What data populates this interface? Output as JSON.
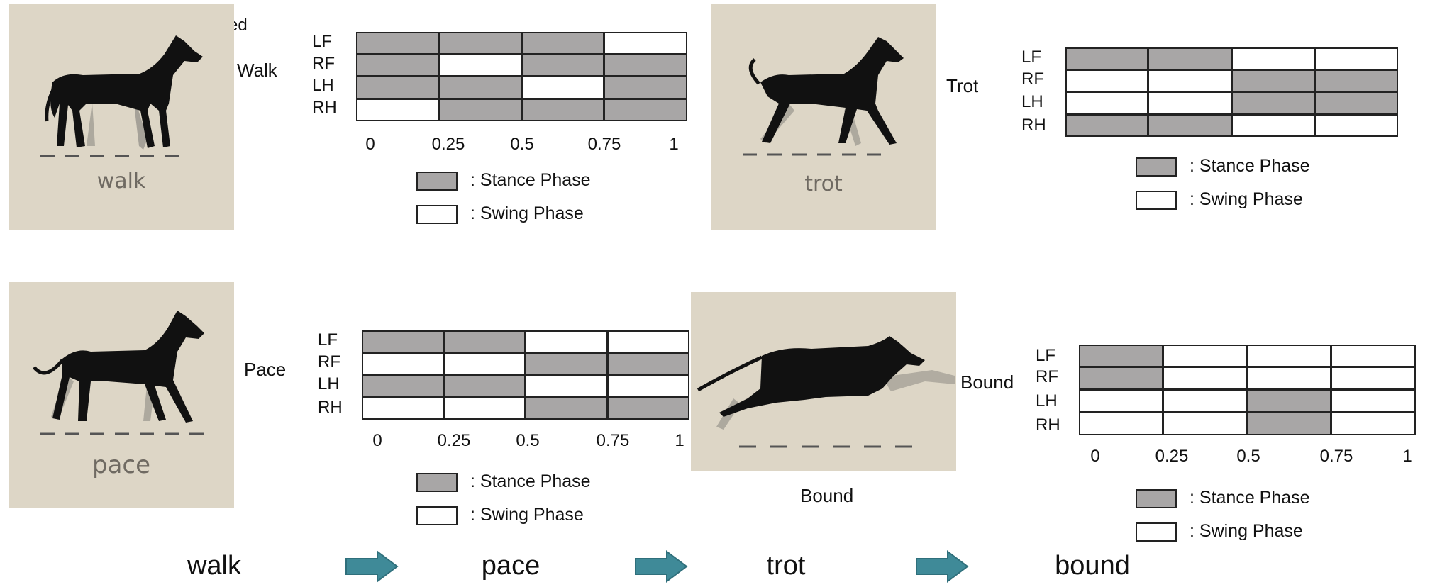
{
  "fragment_text": "ed",
  "panels": [
    {
      "id": "walk",
      "photo_caption": "walk",
      "gait_label": "Walk",
      "rows": [
        "LF",
        "RF",
        "LH",
        "RH"
      ],
      "ticks": [
        "0",
        "0.25",
        "0.5",
        "0.75",
        "1"
      ],
      "pattern": [
        [
          1,
          1,
          1,
          0
        ],
        [
          1,
          0,
          1,
          1
        ],
        [
          1,
          1,
          0,
          1
        ],
        [
          0,
          1,
          1,
          1
        ]
      ],
      "legend": {
        "stance": ": Stance Phase",
        "swing": ": Swing Phase"
      }
    },
    {
      "id": "trot",
      "photo_caption": "trot",
      "gait_label": "Trot",
      "rows": [
        "LF",
        "RF",
        "LH",
        "RH"
      ],
      "ticks": [],
      "pattern": [
        [
          1,
          1,
          0,
          0
        ],
        [
          0,
          0,
          1,
          1
        ],
        [
          0,
          0,
          1,
          1
        ],
        [
          1,
          1,
          0,
          0
        ]
      ],
      "legend": {
        "stance": ": Stance Phase",
        "swing": ": Swing Phase"
      }
    },
    {
      "id": "pace",
      "photo_caption": "pace",
      "gait_label": "Pace",
      "rows": [
        "LF",
        "RF",
        "LH",
        "RH"
      ],
      "ticks": [
        "0",
        "0.25",
        "0.5",
        "0.75",
        "1"
      ],
      "pattern": [
        [
          1,
          1,
          0,
          0
        ],
        [
          0,
          0,
          1,
          1
        ],
        [
          1,
          1,
          0,
          0
        ],
        [
          0,
          0,
          1,
          1
        ]
      ],
      "legend": {
        "stance": ": Stance Phase",
        "swing": ": Swing Phase"
      }
    },
    {
      "id": "bound",
      "photo_caption": "Bound",
      "gait_label": "Bound",
      "rows": [
        "LF",
        "RF",
        "LH",
        "RH"
      ],
      "ticks": [
        "0",
        "0.25",
        "0.5",
        "0.75",
        "1"
      ],
      "pattern": [
        [
          1,
          0,
          0,
          0
        ],
        [
          1,
          0,
          0,
          0
        ],
        [
          0,
          0,
          1,
          0
        ],
        [
          0,
          0,
          1,
          0
        ]
      ],
      "legend": {
        "stance": ": Stance Phase",
        "swing": ": Swing Phase"
      }
    }
  ],
  "colors": {
    "stance": "#a8a6a6",
    "swing": "#ffffff",
    "arrow": "#3f8a98",
    "photo_bg": "#ddd6c6"
  },
  "sequence": [
    "walk",
    "pace",
    "trot",
    "bound"
  ]
}
